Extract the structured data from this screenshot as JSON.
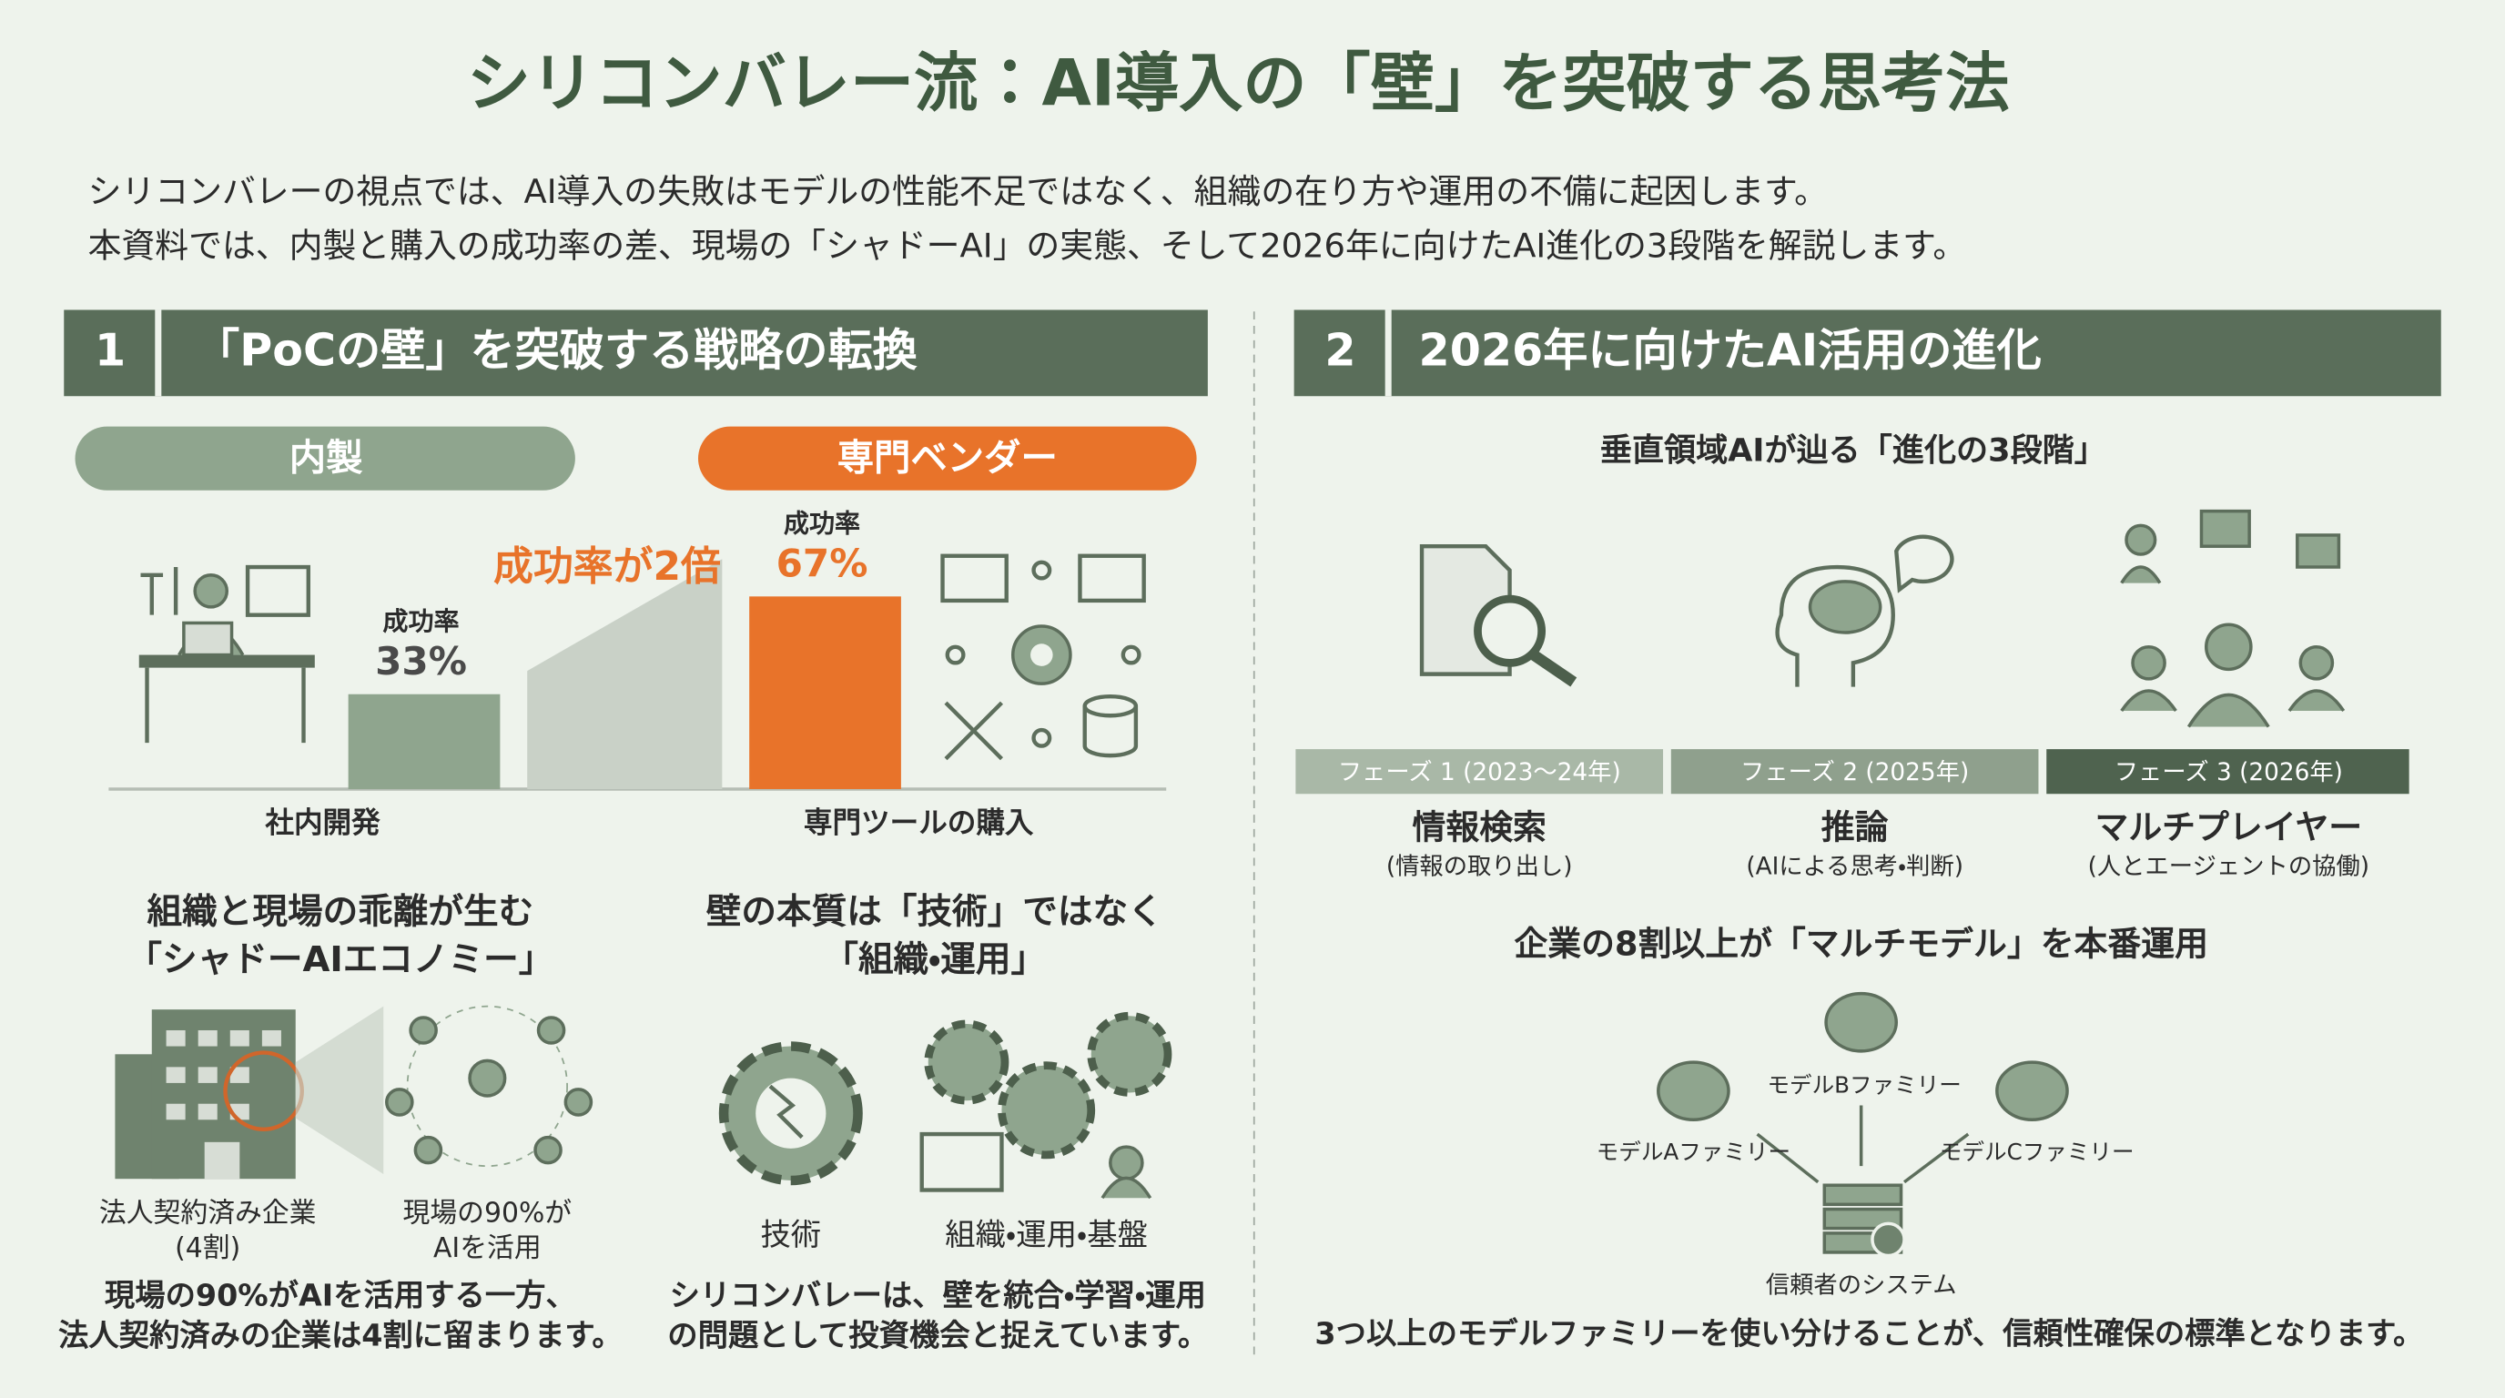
{
  "title": "シリコンバレー流：AI導入の「壁」を突破する思考法",
  "intro": [
    "シリコンバレーの視点では、AI導入の失敗はモデルの性能不足ではなく、組織の在り方や運用の不備に起因します。",
    "本資料では、内製と購入の成功率の差、現場の「シャドーAI」の実態、そして2026年に向けたAI進化の3段階を解説します。"
  ],
  "section1": {
    "number": "1",
    "heading": "「PoCの壁」を突破する戦略の転換",
    "pill_left": "内製",
    "pill_right": "専門ベンダー",
    "comparison": {
      "multiplier_label": "成功率が2倍",
      "bars": [
        {
          "name": "成功率",
          "value": 33,
          "value_label": "33%",
          "category": "社内開発"
        },
        {
          "name": "成功率",
          "value": 67,
          "value_label": "67%",
          "category": "専門ツールの購入"
        }
      ]
    },
    "shadow": {
      "heading": [
        "組織と現場の乖離が生む",
        "「シャドーAIエコノミー」"
      ],
      "label_company": [
        "法人契約済み企業",
        "(4割)"
      ],
      "label_field": [
        "現場の90%が",
        "AIを活用"
      ],
      "caption": [
        "現場の90%がAIを活用する一方、",
        "法人契約済みの企業は4割に留まります。"
      ]
    },
    "essence": {
      "heading": [
        "壁の本質は「技術」ではなく",
        "「組織・運用」"
      ],
      "label_tech": "技術",
      "label_org": "組織・運用・基盤",
      "caption": [
        "シリコンバレーは、壁を統合・学習・運用",
        "の問題として投資機会と捉えています。"
      ]
    }
  },
  "section2": {
    "number": "2",
    "heading": "2026年に向けたAI活用の進化",
    "stages_heading": "垂直領域AIが辿る「進化の3段階」",
    "phases": [
      {
        "phase": "フェーズ 1 (2023〜24年)",
        "name": "情報検索",
        "note": "(情報の取り出し)"
      },
      {
        "phase": "フェーズ 2 (2025年)",
        "name": "推論",
        "note": "(AIによる思考・判断)"
      },
      {
        "phase": "フェーズ 3 (2026年)",
        "name": "マルチプレイヤー",
        "note": "(人とエージェントの協働)"
      }
    ],
    "multimodel_heading": "企業の8割以上が「マルチモデル」を本番運用",
    "models": [
      "モデルAファミリー",
      "モデルBファミリー",
      "モデルCファミリー"
    ],
    "system": "信頼者のシステム",
    "caption": "3つ以上のモデルファミリーを使い分けることが、信頼性確保の標準となります。"
  }
}
